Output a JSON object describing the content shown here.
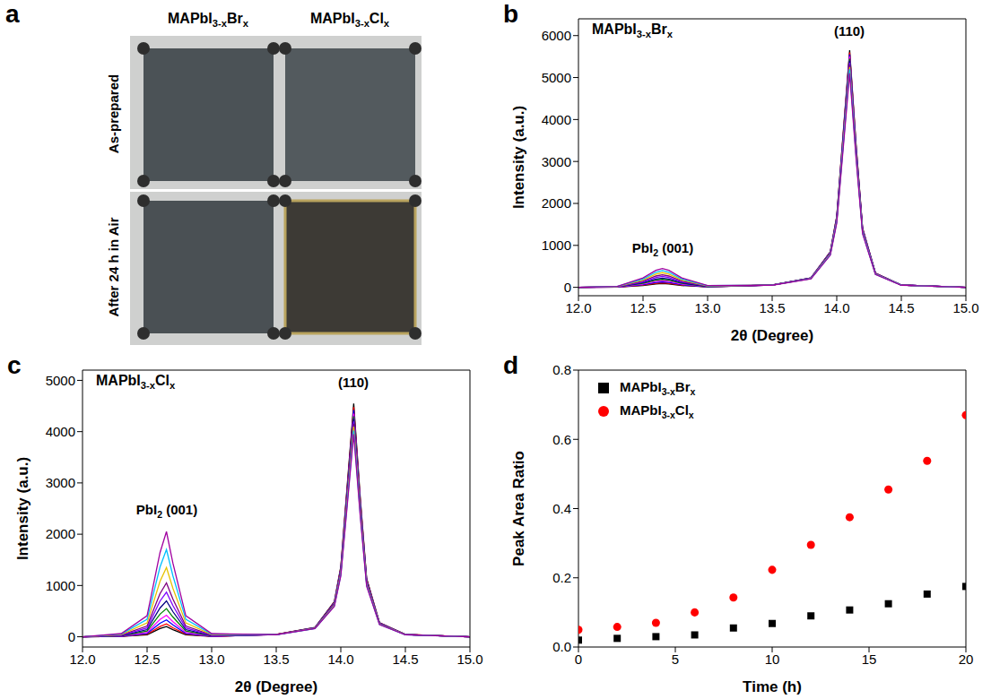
{
  "panel_a": {
    "label": "a",
    "columns": [
      "MAPbI3-xBrx",
      "MAPbI3-xClx"
    ],
    "rows": [
      "As-prepared",
      "After 24 h in Air"
    ]
  },
  "chart_data": [
    {
      "panel": "b",
      "type": "line",
      "title": "MAPbI3-xBrx",
      "annotations": [
        "PbI2 (001)",
        "(110)"
      ],
      "x_label": "2θ (Degree)",
      "y_label": "Intensity (a.u.)",
      "x": [
        12.0,
        12.3,
        12.5,
        12.6,
        12.65,
        12.7,
        12.8,
        13.0,
        13.5,
        13.8,
        13.95,
        14.0,
        14.05,
        14.1,
        14.15,
        14.2,
        14.3,
        14.5,
        15.0
      ],
      "xlim": [
        12,
        15
      ],
      "xticks": [
        {
          "value": 12,
          "label": "12.0"
        },
        12.5,
        {
          "value": 13,
          "label": "13.0"
        },
        13.5,
        {
          "value": 14,
          "label": "14.0"
        },
        14.5,
        {
          "value": 15,
          "label": "15.0"
        }
      ],
      "ylim": [
        -200,
        6400
      ],
      "yticks": [
        0,
        1000,
        2000,
        3000,
        4000,
        5000,
        6000
      ],
      "series": [
        {
          "color": "#000000",
          "values": [
            0,
            5,
            45,
            81,
            90,
            81,
            45,
            9,
            57,
            226,
            848,
            1695,
            3673,
            5650,
            3390,
            1413,
            339,
            57,
            0
          ]
        },
        {
          "color": "#ff0000",
          "values": [
            0,
            6,
            55,
            99,
            110,
            99,
            55,
            11,
            56,
            224,
            840,
            1680,
            3640,
            5600,
            3360,
            1400,
            336,
            56,
            0
          ]
        },
        {
          "color": "#0000ff",
          "values": [
            0,
            7,
            65,
            117,
            130,
            117,
            65,
            13,
            56,
            222,
            833,
            1665,
            3608,
            5550,
            3330,
            1388,
            333,
            56,
            0
          ]
        },
        {
          "color": "#ff00ff",
          "values": [
            0,
            8,
            80,
            144,
            160,
            144,
            80,
            16,
            55,
            220,
            825,
            1650,
            3575,
            5500,
            3300,
            1375,
            330,
            55,
            0
          ]
        },
        {
          "color": "#008000",
          "values": [
            0,
            10,
            95,
            171,
            190,
            171,
            95,
            19,
            55,
            218,
            818,
            1635,
            3543,
            5450,
            3270,
            1363,
            327,
            55,
            0
          ]
        },
        {
          "color": "#000080",
          "values": [
            0,
            11,
            110,
            198,
            220,
            198,
            110,
            22,
            54,
            216,
            810,
            1620,
            3510,
            5400,
            3240,
            1350,
            324,
            54,
            0
          ]
        },
        {
          "color": "#8000ff",
          "values": [
            0,
            13,
            130,
            234,
            260,
            234,
            130,
            26,
            54,
            214,
            803,
            1605,
            3478,
            5350,
            3210,
            1338,
            321,
            54,
            0
          ]
        },
        {
          "color": "#800080",
          "values": [
            0,
            15,
            150,
            270,
            300,
            270,
            150,
            30,
            53,
            212,
            795,
            1590,
            3445,
            5300,
            3180,
            1325,
            318,
            53,
            0
          ]
        },
        {
          "color": "#e6c200",
          "values": [
            0,
            18,
            175,
            315,
            350,
            315,
            175,
            35,
            53,
            210,
            788,
            1575,
            3413,
            5250,
            3150,
            1313,
            315,
            53,
            0
          ]
        },
        {
          "color": "#00bfff",
          "values": [
            0,
            20,
            200,
            360,
            400,
            360,
            200,
            40,
            52,
            208,
            780,
            1560,
            3380,
            5200,
            3120,
            1300,
            312,
            52,
            0
          ]
        },
        {
          "color": "#a000a0",
          "values": [
            0,
            23,
            225,
            405,
            450,
            405,
            225,
            45,
            51,
            204,
            765,
            1530,
            3315,
            5100,
            3060,
            1275,
            306,
            51,
            0
          ]
        }
      ]
    },
    {
      "panel": "c",
      "type": "line",
      "title": "MAPbI3-xClx",
      "annotations": [
        "PbI2 (001)",
        "(110)"
      ],
      "x_label": "2θ (Degree)",
      "y_label": "Intensity (a.u.)",
      "x": [
        12.0,
        12.3,
        12.5,
        12.6,
        12.65,
        12.7,
        12.8,
        13.0,
        13.5,
        13.8,
        13.95,
        14.0,
        14.05,
        14.1,
        14.15,
        14.2,
        14.3,
        14.5,
        15.0
      ],
      "xlim": [
        12,
        15
      ],
      "xticks": [
        {
          "value": 12,
          "label": "12.0"
        },
        12.5,
        {
          "value": 13,
          "label": "13.0"
        },
        13.5,
        {
          "value": 14,
          "label": "14.0"
        },
        14.5,
        {
          "value": 15,
          "label": "15.0"
        }
      ],
      "ylim": [
        -200,
        5200
      ],
      "yticks": [
        0,
        1000,
        2000,
        3000,
        4000,
        5000
      ],
      "series": [
        {
          "color": "#000000",
          "values": [
            0,
            6,
            40,
            160,
            200,
            140,
            40,
            6,
            46,
            182,
            683,
            1365,
            2958,
            4550,
            2730,
            1138,
            273,
            46,
            0
          ]
        },
        {
          "color": "#ff0000",
          "values": [
            0,
            8,
            50,
            200,
            250,
            175,
            50,
            8,
            45,
            179,
            672,
            1344,
            2912,
            4480,
            2688,
            1120,
            269,
            45,
            0
          ]
        },
        {
          "color": "#0000ff",
          "values": [
            0,
            10,
            66,
            264,
            330,
            231,
            66,
            10,
            44,
            177,
            663,
            1326,
            2873,
            4420,
            2652,
            1105,
            265,
            44,
            0
          ]
        },
        {
          "color": "#ff00ff",
          "values": [
            0,
            13,
            84,
            336,
            420,
            294,
            84,
            13,
            44,
            174,
            653,
            1305,
            2828,
            4350,
            2610,
            1088,
            261,
            44,
            0
          ]
        },
        {
          "color": "#008000",
          "values": [
            0,
            17,
            110,
            440,
            550,
            385,
            110,
            17,
            43,
            172,
            645,
            1290,
            2795,
            4300,
            2580,
            1075,
            258,
            43,
            0
          ]
        },
        {
          "color": "#000080",
          "values": [
            0,
            21,
            140,
            560,
            700,
            490,
            140,
            21,
            43,
            170,
            638,
            1275,
            2763,
            4250,
            2550,
            1063,
            255,
            43,
            0
          ]
        },
        {
          "color": "#8000ff",
          "values": [
            0,
            26,
            174,
            696,
            870,
            609,
            174,
            26,
            42,
            168,
            630,
            1260,
            2730,
            4200,
            2520,
            1050,
            252,
            42,
            0
          ]
        },
        {
          "color": "#800080",
          "values": [
            0,
            32,
            210,
            840,
            1050,
            735,
            210,
            32,
            42,
            166,
            623,
            1245,
            2698,
            4150,
            2490,
            1038,
            249,
            42,
            0
          ]
        },
        {
          "color": "#e6c200",
          "values": [
            0,
            41,
            270,
            1080,
            1350,
            945,
            270,
            41,
            41,
            164,
            615,
            1230,
            2665,
            4100,
            2460,
            1025,
            246,
            41,
            0
          ]
        },
        {
          "color": "#00bfff",
          "values": [
            0,
            51,
            340,
            1360,
            1700,
            1190,
            340,
            51,
            40,
            161,
            603,
            1206,
            2613,
            4020,
            2412,
            1005,
            241,
            40,
            0
          ]
        },
        {
          "color": "#a000a0",
          "values": [
            0,
            62,
            410,
            1640,
            2050,
            1435,
            410,
            62,
            40,
            158,
            593,
            1185,
            2568,
            3950,
            2370,
            988,
            237,
            40,
            0
          ]
        }
      ]
    },
    {
      "panel": "d",
      "type": "scatter",
      "x_label": "Time (h)",
      "y_label": "Peak Area Ratio",
      "legend": "upper left",
      "x": [
        0,
        2,
        4,
        6,
        8,
        10,
        12,
        14,
        16,
        18,
        20
      ],
      "xlim": [
        0,
        20
      ],
      "xticks": [
        0,
        5,
        10,
        15,
        20
      ],
      "ylim": [
        0,
        0.8
      ],
      "yticks": [
        {
          "value": 0,
          "label": "0.0"
        },
        0.2,
        0.4,
        0.6,
        0.8
      ],
      "series": [
        {
          "name": "MAPbI3-xBrx",
          "color": "#000000",
          "marker": "square",
          "values": [
            0.02,
            0.025,
            0.03,
            0.035,
            0.055,
            0.068,
            0.09,
            0.107,
            0.125,
            0.153,
            0.175
          ]
        },
        {
          "name": "MAPbI3-xClx",
          "color": "#ff0000",
          "marker": "circle",
          "values": [
            0.05,
            0.058,
            0.07,
            0.1,
            0.143,
            0.223,
            0.295,
            0.375,
            0.455,
            0.538,
            0.67
          ]
        }
      ]
    }
  ]
}
